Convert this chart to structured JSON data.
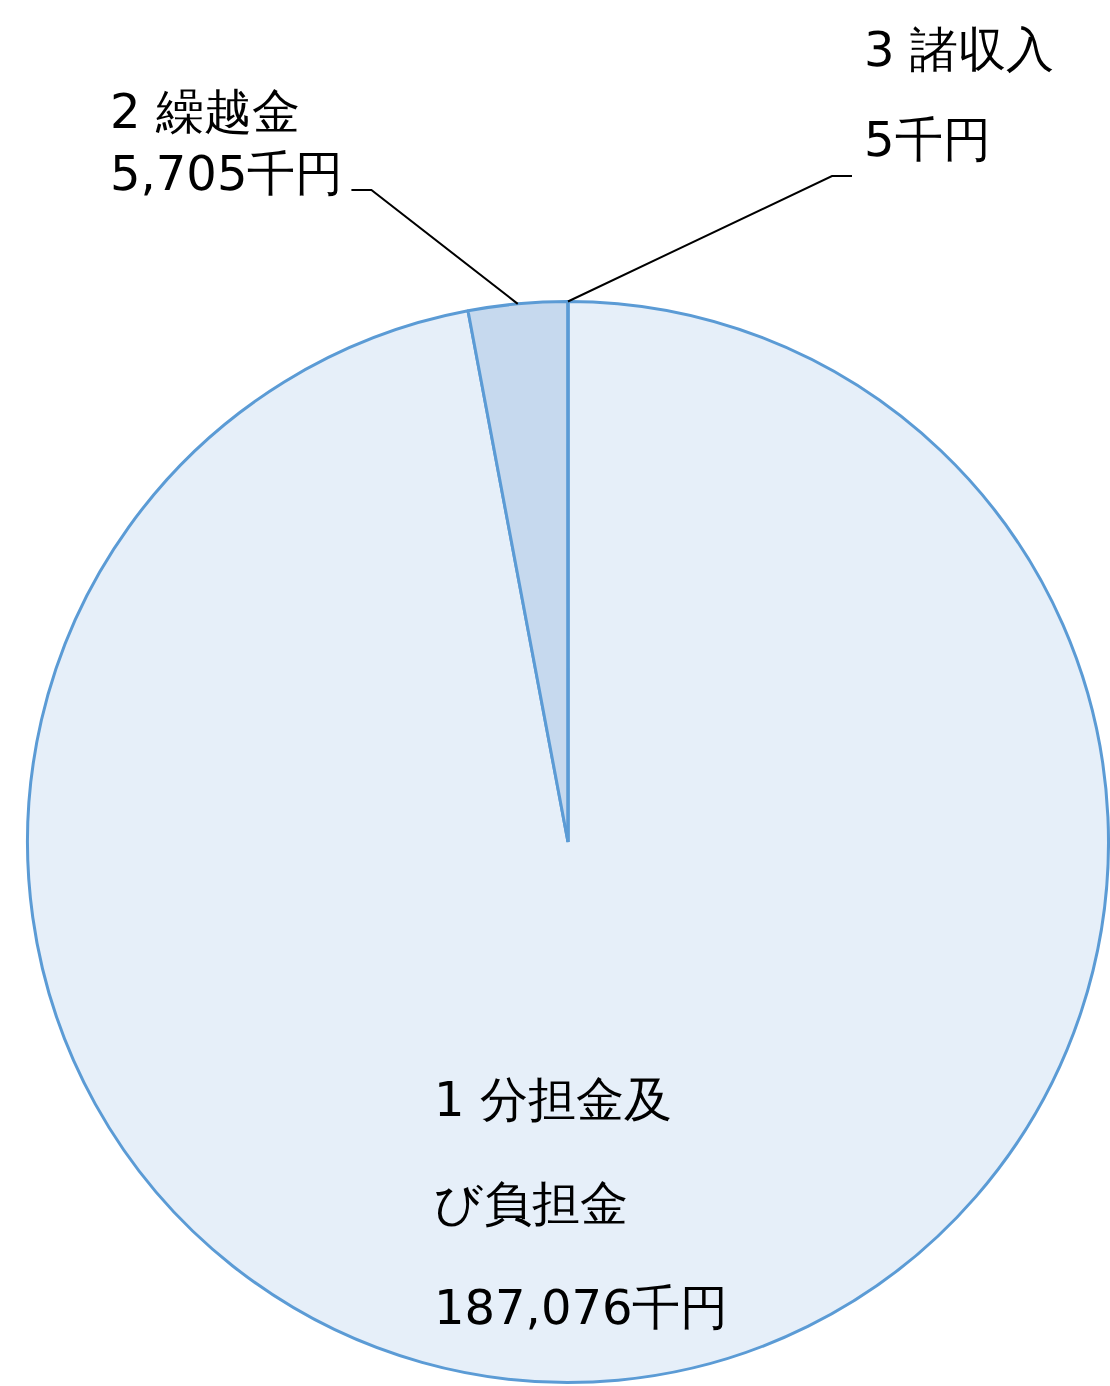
{
  "chart_data": {
    "type": "pie",
    "categories": [
      "1 分担金及び負担金",
      "2 繰越金",
      "3 諸収入"
    ],
    "values": [
      187076,
      5705,
      5
    ],
    "value_labels": [
      "187,076千円",
      "5,705千円",
      "5千円"
    ],
    "colors": [
      "#e6eff9",
      "#c6d9ee",
      "#e6eff9"
    ],
    "legend": false
  }
}
